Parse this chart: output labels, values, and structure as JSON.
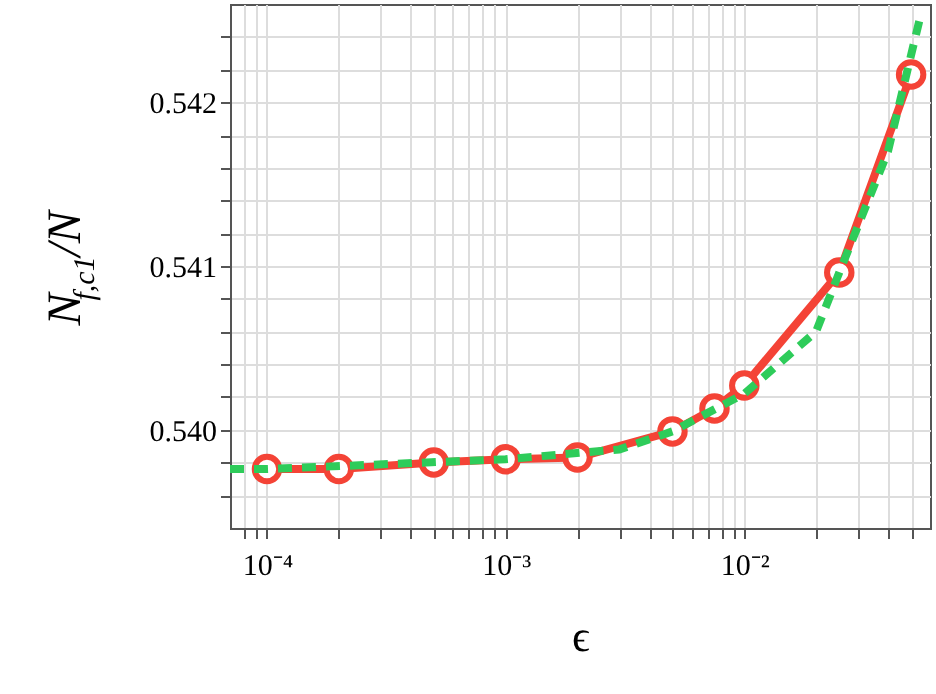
{
  "chart_data": {
    "type": "line",
    "xlabel": "ϵ",
    "ylabel": "N$_{f,c1}$/N",
    "log": "x",
    "grid": true,
    "xlim": [
      7e-05,
      0.06
    ],
    "ylim": [
      0.5394,
      0.5426
    ],
    "xticks": [
      {
        "value": 8e-05,
        "label": null
      },
      {
        "value": 9e-05,
        "label": null
      },
      {
        "value": 0.0001,
        "label": "10⁻⁴"
      },
      {
        "value": 0.0002,
        "label": null
      },
      {
        "value": 0.0003,
        "label": null
      },
      {
        "value": 0.0004,
        "label": null
      },
      {
        "value": 0.0005,
        "label": null
      },
      {
        "value": 0.0006,
        "label": null
      },
      {
        "value": 0.0007,
        "label": null
      },
      {
        "value": 0.0008,
        "label": null
      },
      {
        "value": 0.0009,
        "label": null
      },
      {
        "value": 0.001,
        "label": "10⁻³"
      },
      {
        "value": 0.002,
        "label": null
      },
      {
        "value": 0.003,
        "label": null
      },
      {
        "value": 0.004,
        "label": null
      },
      {
        "value": 0.005,
        "label": null
      },
      {
        "value": 0.006,
        "label": null
      },
      {
        "value": 0.007,
        "label": null
      },
      {
        "value": 0.008,
        "label": null
      },
      {
        "value": 0.009,
        "label": null
      },
      {
        "value": 0.01,
        "label": "10⁻²"
      },
      {
        "value": 0.02,
        "label": null
      },
      {
        "value": 0.03,
        "label": null
      },
      {
        "value": 0.04,
        "label": null
      },
      {
        "value": 0.05,
        "label": null
      }
    ],
    "yticks": [
      {
        "value": 0.5396,
        "label": null
      },
      {
        "value": 0.5398,
        "label": null
      },
      {
        "value": 0.54,
        "label": "0.540"
      },
      {
        "value": 0.5402,
        "label": null
      },
      {
        "value": 0.5404,
        "label": null
      },
      {
        "value": 0.5406,
        "label": null
      },
      {
        "value": 0.5408,
        "label": null
      },
      {
        "value": 0.541,
        "label": "0.541"
      },
      {
        "value": 0.5412,
        "label": null
      },
      {
        "value": 0.5414,
        "label": null
      },
      {
        "value": 0.5416,
        "label": null
      },
      {
        "value": 0.5418,
        "label": null
      },
      {
        "value": 0.542,
        "label": "0.542"
      },
      {
        "value": 0.5422,
        "label": null
      },
      {
        "value": 0.5424,
        "label": null
      }
    ],
    "series": [
      {
        "color": "#f44336",
        "marker": "circle",
        "line_style": "solid",
        "x": [
          0.0001,
          0.0002,
          0.0005,
          0.001,
          0.002,
          0.005,
          0.0075,
          0.01,
          0.025,
          0.05
        ],
        "values": [
          0.53976,
          0.53976,
          0.5398,
          0.53982,
          0.53983,
          0.53999,
          0.54013,
          0.54027,
          0.54096,
          0.54217
        ]
      },
      {
        "color": "#2ecc5a",
        "marker": "none",
        "line_style": "dashed",
        "x": [
          7e-05,
          0.0001,
          0.001,
          0.003,
          0.005,
          0.01,
          0.02,
          0.025,
          0.04,
          0.055
        ],
        "values": [
          0.53976,
          0.53976,
          0.53982,
          0.53988,
          0.53999,
          0.54022,
          0.5406,
          0.54096,
          0.5417,
          0.54254
        ]
      }
    ]
  }
}
